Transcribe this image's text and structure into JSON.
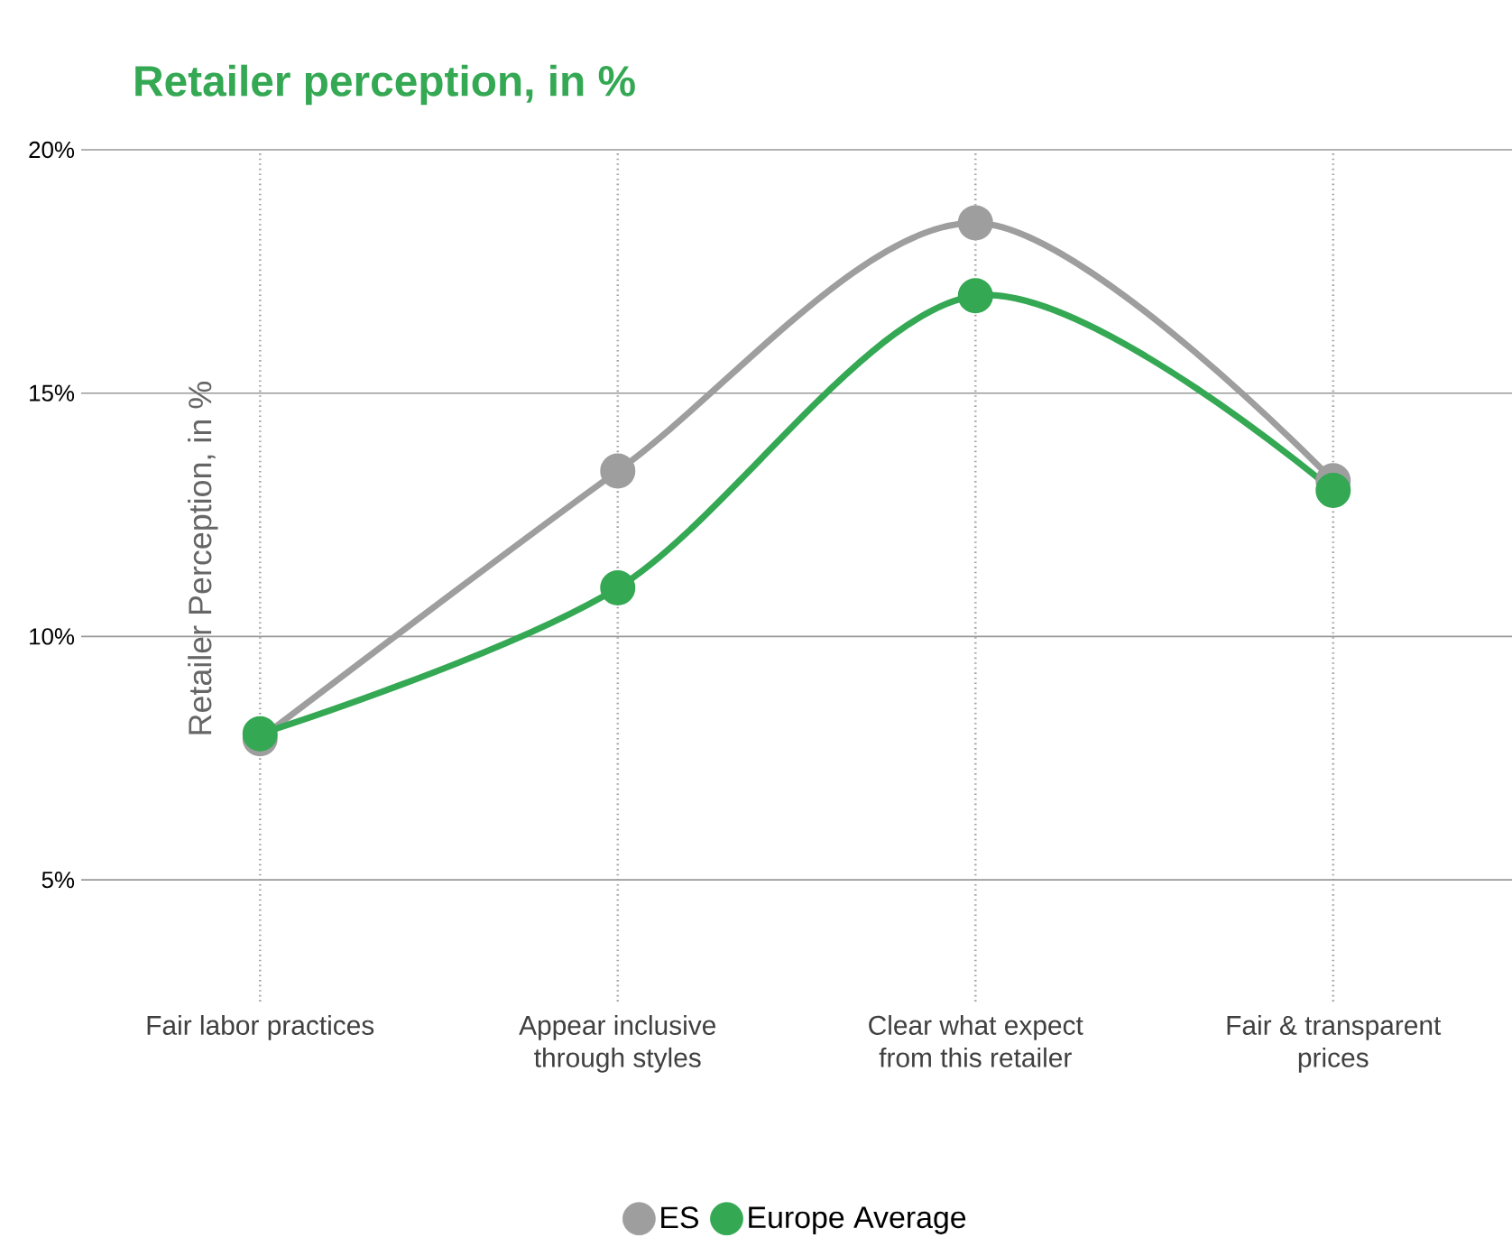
{
  "chart_data": {
    "type": "line",
    "title": "Retailer perception, in %",
    "ylabel": "Retailer Perception, in %",
    "categories": [
      "Fair labor practices",
      "Appear inclusive\nthrough styles",
      "Clear what expect\nfrom this retailer",
      "Fair & transparent\nprices"
    ],
    "series": [
      {
        "name": "ES",
        "color": "#9e9e9e",
        "values": [
          7.9,
          13.4,
          18.5,
          13.2
        ]
      },
      {
        "name": "Europe Average",
        "color": "#34a853",
        "values": [
          8.0,
          11.0,
          17.0,
          13.0
        ]
      }
    ],
    "ylim": [
      2.5,
      20
    ],
    "yticks": [
      {
        "value": 5,
        "label": "5%"
      },
      {
        "value": 10,
        "label": "10%"
      },
      {
        "value": 15,
        "label": "15%"
      },
      {
        "value": 20,
        "label": "20%"
      }
    ],
    "grid": true,
    "legend": "bottom",
    "marker": "circle",
    "line_style": "solid"
  }
}
